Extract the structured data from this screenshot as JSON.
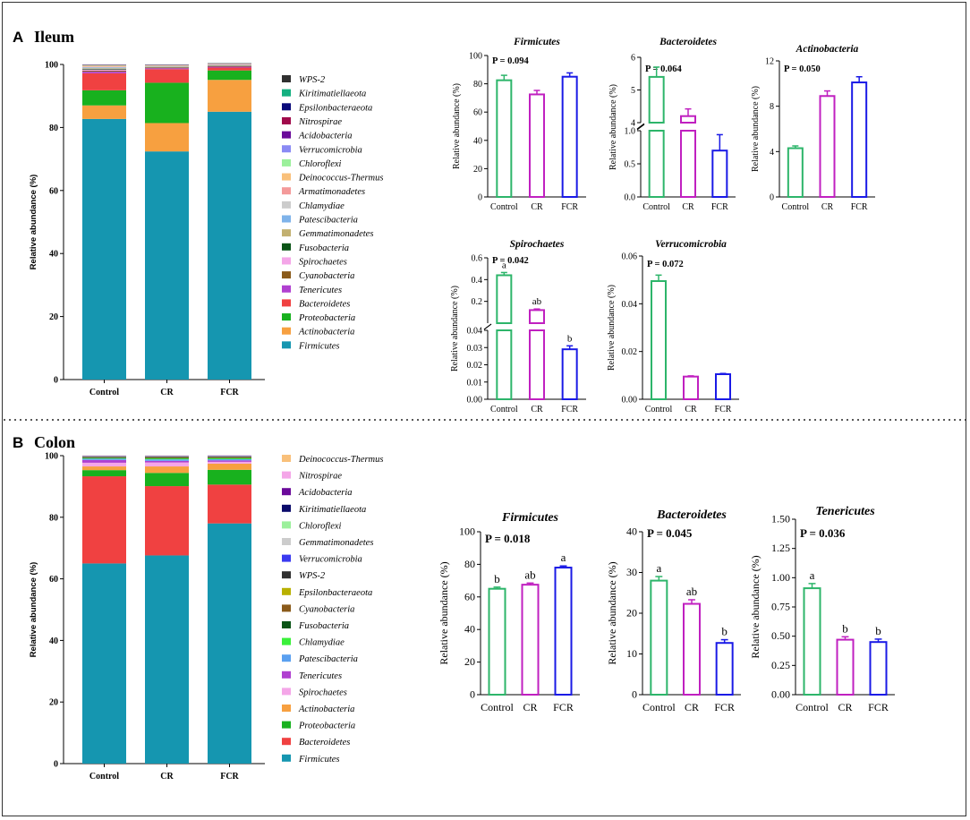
{
  "panels": [
    {
      "letter": "A",
      "title": "Ileum",
      "stacked": {
        "type": "stacked-bar",
        "ylabel": "Relative abundance (%)",
        "ylim": [
          0,
          100
        ],
        "yticks": [
          0,
          20,
          40,
          60,
          80,
          100
        ],
        "categories": [
          "Control",
          "CR",
          "FCR"
        ],
        "series": [
          {
            "name": "Firmicutes",
            "color": "#1596b0",
            "values": [
              82.7,
              72.4,
              85.0
            ]
          },
          {
            "name": "Actinobacteria",
            "color": "#f7a040",
            "values": [
              4.3,
              9.0,
              10.1
            ]
          },
          {
            "name": "Proteobacteria",
            "color": "#18b11e",
            "values": [
              4.8,
              12.8,
              3.0
            ]
          },
          {
            "name": "Bacteroidetes",
            "color": "#f04141",
            "values": [
              5.4,
              4.3,
              0.9
            ]
          },
          {
            "name": "Tenericutes",
            "color": "#b040d0",
            "values": [
              0.5,
              0.3,
              0.3
            ]
          },
          {
            "name": "Cyanobacteria",
            "color": "#8a5a1a",
            "values": [
              0.3,
              0.2,
              0.2
            ]
          },
          {
            "name": "Spirochaetes",
            "color": "#f4a6e8",
            "values": [
              0.4,
              0.1,
              0.03
            ]
          },
          {
            "name": "Fusobacteria",
            "color": "#0b5416",
            "values": [
              0.2,
              0.1,
              0.1
            ]
          },
          {
            "name": "Gemmatimonadetes",
            "color": "#c2b070",
            "values": [
              0.2,
              0.1,
              0.1
            ]
          },
          {
            "name": "Patescibacteria",
            "color": "#7fb3ea",
            "values": [
              0.2,
              0.1,
              0.1
            ]
          },
          {
            "name": "Chlamydiae",
            "color": "#cccccc",
            "values": [
              0.2,
              0.1,
              0.1
            ]
          },
          {
            "name": "Armatimonadetes",
            "color": "#f49a9a",
            "values": [
              0.2,
              0.1,
              0.1
            ]
          },
          {
            "name": "Deinococcus-Thermus",
            "color": "#f9c07a",
            "values": [
              0.2,
              0.1,
              0.1
            ]
          },
          {
            "name": "Chloroflexi",
            "color": "#9bf09b",
            "values": [
              0.1,
              0.05,
              0.05
            ]
          },
          {
            "name": "Verrucomicrobia",
            "color": "#8a8af4",
            "values": [
              0.05,
              0.01,
              0.01
            ]
          },
          {
            "name": "Acidobacteria",
            "color": "#6a0a9a",
            "values": [
              0.05,
              0.05,
              0.05
            ]
          },
          {
            "name": "Nitrospirae",
            "color": "#a00a4a",
            "values": [
              0.05,
              0.05,
              0.05
            ]
          },
          {
            "name": "Epsilonbacteraeota",
            "color": "#0a0a7a",
            "values": [
              0.05,
              0.05,
              0.05
            ]
          },
          {
            "name": "Kiritimatiellaeota",
            "color": "#14b080",
            "values": [
              0.05,
              0.05,
              0.05
            ]
          },
          {
            "name": "WPS-2",
            "color": "#303030",
            "values": [
              0.05,
              0.05,
              0.05
            ]
          }
        ]
      },
      "bars": [
        {
          "title": "Firmicutes",
          "p": "P = 0.094",
          "ylabel": "Relative abundance (%)",
          "ylim": [
            0,
            100
          ],
          "yticks": [
            "0",
            "20",
            "40",
            "60",
            "80",
            "100"
          ],
          "categories": [
            "Control",
            "CR",
            "FCR"
          ],
          "values": [
            82.5,
            72.5,
            85.0
          ],
          "errors": [
            3.5,
            2.8,
            2.7
          ],
          "letters": [
            "",
            "",
            ""
          ]
        },
        {
          "title": "Bacteroidetes",
          "p": "P = 0.064",
          "ylabel": "Relative abundance (%)",
          "broken": true,
          "lower_ylim": [
            0,
            1.0
          ],
          "lower_yticks": [
            "0.0",
            "0.5",
            "1.0"
          ],
          "upper_ylim": [
            4,
            6
          ],
          "upper_yticks": [
            "4",
            "5",
            "6"
          ],
          "categories": [
            "Control",
            "CR",
            "FCR"
          ],
          "values": [
            5.4,
            4.2,
            0.7
          ],
          "errors": [
            0.3,
            0.22,
            0.24
          ],
          "letters": [
            "",
            "",
            ""
          ]
        },
        {
          "title": "Actinobacteria",
          "p": "P = 0.050",
          "ylabel": "Relative abundance (%)",
          "ylim": [
            0,
            12
          ],
          "yticks": [
            "0",
            "4",
            "8",
            "12"
          ],
          "categories": [
            "Control",
            "CR",
            "FCR"
          ],
          "values": [
            4.3,
            8.9,
            10.1
          ],
          "errors": [
            0.2,
            0.45,
            0.5
          ],
          "letters": [
            "",
            "",
            ""
          ]
        },
        {
          "title": "Spirochaetes",
          "p": "P = 0.042",
          "ylabel": "Relative abundance (%)",
          "broken": true,
          "lower_ylim": [
            0,
            0.04
          ],
          "lower_yticks": [
            "0.00",
            "0.01",
            "0.02",
            "0.03",
            "0.04"
          ],
          "upper_ylim": [
            0,
            0.6
          ],
          "upper_yticks": [
            "0.2",
            "0.4",
            "0.6"
          ],
          "categories": [
            "Control",
            "CR",
            "FCR"
          ],
          "values": [
            0.44,
            0.12,
            0.029
          ],
          "errors": [
            0.025,
            0.01,
            0.002
          ],
          "letters": [
            "a",
            "ab",
            "b"
          ]
        },
        {
          "title": "Verrucomicrobia",
          "p": "P = 0.072",
          "ylabel": "Relative abundance (%)",
          "ylim": [
            0,
            0.06
          ],
          "yticks": [
            "0.00",
            "0.02",
            "0.04",
            "0.06"
          ],
          "categories": [
            "Control",
            "CR",
            "FCR"
          ],
          "values": [
            0.0495,
            0.0095,
            0.0105
          ],
          "errors": [
            0.0025,
            0.0003,
            0.0003
          ],
          "letters": [
            "",
            "",
            ""
          ]
        }
      ]
    },
    {
      "letter": "B",
      "title": "Colon",
      "stacked": {
        "type": "stacked-bar",
        "ylabel": "Relative abundance (%)",
        "ylim": [
          0,
          100
        ],
        "yticks": [
          0,
          20,
          40,
          60,
          80,
          100
        ],
        "categories": [
          "Control",
          "CR",
          "FCR"
        ],
        "series": [
          {
            "name": "Firmicutes",
            "color": "#1596b0",
            "values": [
              65.0,
              67.6,
              78.0
            ]
          },
          {
            "name": "Bacteroidetes",
            "color": "#f04141",
            "values": [
              28.3,
              22.5,
              12.6
            ]
          },
          {
            "name": "Proteobacteria",
            "color": "#18b11e",
            "values": [
              2.0,
              4.3,
              4.8
            ]
          },
          {
            "name": "Actinobacteria",
            "color": "#f7a040",
            "values": [
              1.2,
              2.1,
              2.0
            ]
          },
          {
            "name": "Spirochaetes",
            "color": "#f4a6e8",
            "values": [
              1.2,
              1.3,
              0.6
            ]
          },
          {
            "name": "Tenericutes",
            "color": "#b040d0",
            "values": [
              0.9,
              0.5,
              0.45
            ]
          },
          {
            "name": "Patescibacteria",
            "color": "#5aa0f0",
            "values": [
              0.4,
              0.5,
              0.4
            ]
          },
          {
            "name": "Chlamydiae",
            "color": "#3af03a",
            "values": [
              0.2,
              0.3,
              0.3
            ]
          },
          {
            "name": "Fusobacteria",
            "color": "#0b5416",
            "values": [
              0.2,
              0.2,
              0.2
            ]
          },
          {
            "name": "Cyanobacteria",
            "color": "#8a5a1a",
            "values": [
              0.1,
              0.2,
              0.2
            ]
          },
          {
            "name": "Epsilonbacteraeota",
            "color": "#b8b000",
            "values": [
              0.1,
              0.1,
              0.1
            ]
          },
          {
            "name": "WPS-2",
            "color": "#303030",
            "values": [
              0.1,
              0.1,
              0.1
            ]
          },
          {
            "name": "Verrucomicrobia",
            "color": "#3a3af0",
            "values": [
              0.1,
              0.1,
              0.1
            ]
          },
          {
            "name": "Gemmatimonadetes",
            "color": "#cccccc",
            "values": [
              0.05,
              0.05,
              0.05
            ]
          },
          {
            "name": "Chloroflexi",
            "color": "#9bf09b",
            "values": [
              0.05,
              0.05,
              0.05
            ]
          },
          {
            "name": "Kiritimatiellaeota",
            "color": "#0a0a6a",
            "values": [
              0.05,
              0.05,
              0.05
            ]
          },
          {
            "name": "Acidobacteria",
            "color": "#6a0a9a",
            "values": [
              0.05,
              0.05,
              0.05
            ]
          },
          {
            "name": "Nitrospirae",
            "color": "#f4a6e8",
            "values": [
              0.05,
              0.05,
              0.05
            ]
          },
          {
            "name": "Deinococcus-Thermus",
            "color": "#f9c07a",
            "values": [
              0.05,
              0.05,
              0.05
            ]
          }
        ]
      },
      "bars": [
        {
          "title": "Firmicutes",
          "p": "P = 0.018",
          "ylabel": "Relative abundance (%)",
          "ylim": [
            0,
            100
          ],
          "yticks": [
            "0",
            "20",
            "40",
            "60",
            "80",
            "100"
          ],
          "categories": [
            "Control",
            "CR",
            "FCR"
          ],
          "values": [
            65.0,
            67.5,
            78.0
          ],
          "errors": [
            1.0,
            1.0,
            1.0
          ],
          "letters": [
            "b",
            "ab",
            "a"
          ]
        },
        {
          "title": "Bacteroidetes",
          "p": "P = 0.045",
          "ylabel": "Relative abundance (%)",
          "ylim": [
            0,
            40
          ],
          "yticks": [
            "0",
            "10",
            "20",
            "30",
            "40"
          ],
          "categories": [
            "Control",
            "CR",
            "FCR"
          ],
          "values": [
            28.0,
            22.3,
            12.7
          ],
          "errors": [
            1.0,
            1.0,
            0.8
          ],
          "letters": [
            "a",
            "ab",
            "b"
          ]
        },
        {
          "title": "Tenericutes",
          "p": "P = 0.036",
          "ylabel": "Relative abundance (%)",
          "ylim": [
            0,
            1.5
          ],
          "yticks": [
            "0.00",
            "0.25",
            "0.50",
            "0.75",
            "1.00",
            "1.25",
            "1.50"
          ],
          "categories": [
            "Control",
            "CR",
            "FCR"
          ],
          "values": [
            0.91,
            0.47,
            0.45
          ],
          "errors": [
            0.04,
            0.025,
            0.025
          ],
          "letters": [
            "a",
            "b",
            "b"
          ]
        }
      ]
    }
  ],
  "bar_colors": [
    "#2db56a",
    "#c020c0",
    "#1a1ae6"
  ]
}
